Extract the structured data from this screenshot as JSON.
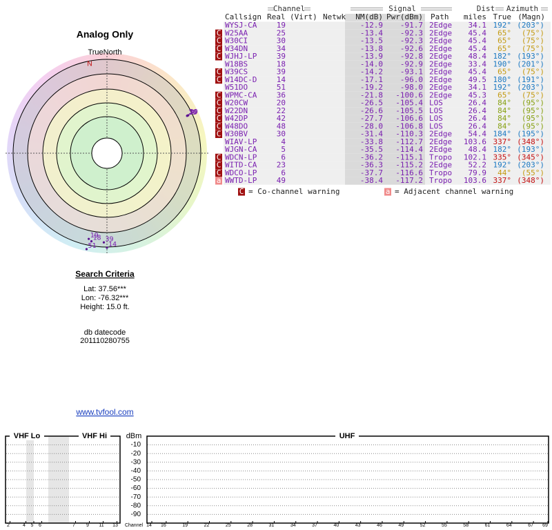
{
  "left": {
    "title": "Analog Only",
    "north_label": "TrueNorth",
    "n_marker": "N"
  },
  "criteria": {
    "title": "Search Criteria",
    "lat": "Lat: 37.56***",
    "lon": "Lon: -76.32***",
    "height": "Height: 15.0 ft.",
    "datecode_label": "db datecode",
    "datecode": "201110280755",
    "link": "www.tvfool.com"
  },
  "table": {
    "groups": {
      "channel": "Channel",
      "signal": "Signal",
      "dist": "Dist",
      "azimuth": "Azimuth"
    },
    "columns": [
      "Callsign",
      "Real",
      "(Virt)",
      "Netwk",
      "NM(dB)",
      "Pwr(dBm)",
      "Path",
      "miles",
      "True",
      "(Magn)"
    ],
    "rows": [
      {
        "callsign": "WYSJ-CA",
        "real": "19",
        "nm": "-12.9",
        "pwr": "-91.7",
        "path": "2Edge",
        "dist": "34.1",
        "true": "192°",
        "magn": "(203°)",
        "az_color": "#1a78c2"
      },
      {
        "flag": "C",
        "callsign": "W25AA",
        "real": "25",
        "nm": "-13.4",
        "pwr": "-92.3",
        "path": "2Edge",
        "dist": "45.4",
        "true": "65°",
        "magn": "(75°)",
        "az_color": "#c39a10"
      },
      {
        "flag": "C",
        "callsign": "W30CI",
        "real": "30",
        "nm": "-13.5",
        "pwr": "-92.3",
        "path": "2Edge",
        "dist": "45.4",
        "true": "65°",
        "magn": "(75°)",
        "az_color": "#c39a10"
      },
      {
        "flag": "C",
        "callsign": "W34DN",
        "real": "34",
        "nm": "-13.8",
        "pwr": "-92.6",
        "path": "2Edge",
        "dist": "45.4",
        "true": "65°",
        "magn": "(75°)",
        "az_color": "#c39a10"
      },
      {
        "flag": "C",
        "callsign": "WJHJ-LP",
        "real": "39",
        "nm": "-13.9",
        "pwr": "-92.8",
        "path": "2Edge",
        "dist": "48.4",
        "true": "182°",
        "magn": "(193°)",
        "az_color": "#1a78c2"
      },
      {
        "callsign": "W18BS",
        "real": "18",
        "nm": "-14.0",
        "pwr": "-92.9",
        "path": "2Edge",
        "dist": "33.4",
        "true": "190°",
        "magn": "(201°)",
        "az_color": "#1a78c2"
      },
      {
        "flag": "C",
        "callsign": "W39CS",
        "real": "39",
        "nm": "-14.2",
        "pwr": "-93.1",
        "path": "2Edge",
        "dist": "45.4",
        "true": "65°",
        "magn": "(75°)",
        "az_color": "#c39a10"
      },
      {
        "flag": "C",
        "callsign": "W14DC-D",
        "real": "14",
        "nm": "-17.1",
        "pwr": "-96.0",
        "path": "2Edge",
        "dist": "49.5",
        "true": "180°",
        "magn": "(191°)",
        "az_color": "#1a78c2"
      },
      {
        "callsign": "W51DO",
        "real": "51",
        "nm": "-19.2",
        "pwr": "-98.0",
        "path": "2Edge",
        "dist": "34.1",
        "true": "192°",
        "magn": "(203°)",
        "az_color": "#1a78c2"
      },
      {
        "flag": "C",
        "callsign": "WPMC-CA",
        "real": "36",
        "nm": "-21.8",
        "pwr": "-100.6",
        "path": "2Edge",
        "dist": "45.3",
        "true": "65°",
        "magn": "(75°)",
        "az_color": "#c39a10"
      },
      {
        "flag": "C",
        "callsign": "W20CW",
        "real": "20",
        "nm": "-26.5",
        "pwr": "-105.4",
        "path": "LOS",
        "dist": "26.4",
        "true": "84°",
        "magn": "(95°)",
        "az_color": "#86a010"
      },
      {
        "flag": "C",
        "callsign": "W22DN",
        "real": "22",
        "nm": "-26.6",
        "pwr": "-105.5",
        "path": "LOS",
        "dist": "26.4",
        "true": "84°",
        "magn": "(95°)",
        "az_color": "#86a010"
      },
      {
        "flag": "C",
        "callsign": "W42DP",
        "real": "42",
        "nm": "-27.7",
        "pwr": "-106.6",
        "path": "LOS",
        "dist": "26.4",
        "true": "84°",
        "magn": "(95°)",
        "az_color": "#86a010"
      },
      {
        "flag": "C",
        "callsign": "W48DO",
        "real": "48",
        "nm": "-28.0",
        "pwr": "-106.8",
        "path": "LOS",
        "dist": "26.4",
        "true": "84°",
        "magn": "(95°)",
        "az_color": "#86a010"
      },
      {
        "flag": "C",
        "callsign": "W30BV",
        "real": "30",
        "nm": "-31.4",
        "pwr": "-110.3",
        "path": "2Edge",
        "dist": "54.4",
        "true": "184°",
        "magn": "(195°)",
        "az_color": "#1a78c2"
      },
      {
        "callsign": "WIAV-LP",
        "real": "4",
        "nm": "-33.8",
        "pwr": "-112.7",
        "path": "2Edge",
        "dist": "103.6",
        "true": "337°",
        "magn": "(348°)",
        "az_color": "#c41010"
      },
      {
        "callsign": "WJGN-CA",
        "real": "5",
        "nm": "-35.5",
        "pwr": "-114.4",
        "path": "2Edge",
        "dist": "48.4",
        "true": "182°",
        "magn": "(193°)",
        "az_color": "#1a78c2"
      },
      {
        "flag": "C",
        "callsign": "WDCN-LP",
        "real": "6",
        "nm": "-36.2",
        "pwr": "-115.1",
        "path": "Tropo",
        "dist": "102.1",
        "true": "335°",
        "magn": "(345°)",
        "az_color": "#c41010"
      },
      {
        "flag": "C",
        "callsign": "WITD-CA",
        "real": "23",
        "nm": "-36.3",
        "pwr": "-115.2",
        "path": "2Edge",
        "dist": "52.2",
        "true": "192°",
        "magn": "(203°)",
        "az_color": "#1a78c2"
      },
      {
        "flag": "C",
        "callsign": "WDCO-LP",
        "real": "6",
        "nm": "-37.7",
        "pwr": "-116.6",
        "path": "Tropo",
        "dist": "79.9",
        "true": "44°",
        "magn": "(55°)",
        "az_color": "#c39a10"
      },
      {
        "flag": "a",
        "callsign": "WWTD-LP",
        "real": "49",
        "nm": "-38.4",
        "pwr": "-117.2",
        "path": "Tropo",
        "dist": "103.6",
        "true": "337°",
        "magn": "(348°)",
        "az_color": "#c41010"
      }
    ]
  },
  "legend": {
    "co_icon": "C",
    "co_text": "= Co-channel warning",
    "adj_icon": "a",
    "adj_text": "= Adjacent channel warning"
  },
  "spectrum": {
    "vhf_lo": "VHF Lo",
    "vhf_hi": "VHF Hi",
    "uhf": "UHF",
    "y_label": "dBm",
    "x_label": "Channel",
    "ylim": [
      0,
      -100
    ],
    "yticks": [
      -10,
      -20,
      -30,
      -40,
      -50,
      -60,
      -70,
      -80,
      -90
    ],
    "vhf_ticks": [
      2,
      4,
      5,
      6,
      7,
      9,
      11,
      13
    ],
    "uhf_ticks": [
      14,
      16,
      19,
      22,
      25,
      28,
      31,
      34,
      37,
      40,
      43,
      46,
      49,
      52,
      55,
      58,
      61,
      64,
      67,
      69
    ]
  }
}
